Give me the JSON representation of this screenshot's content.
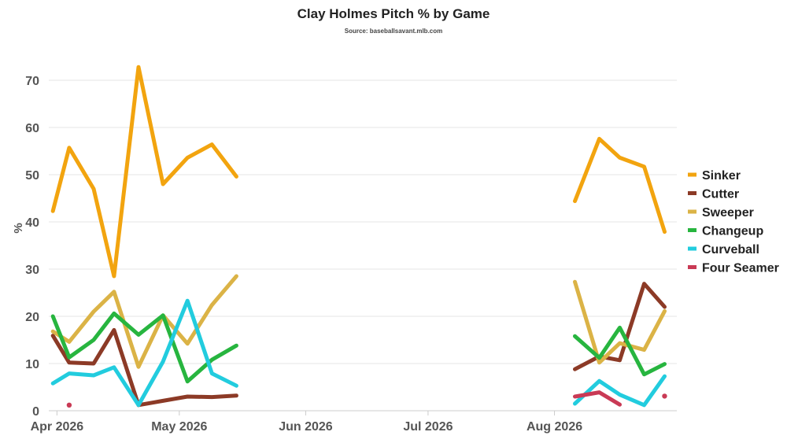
{
  "chart_data": {
    "type": "line",
    "title": "Clay Holmes Pitch % by Game",
    "subtitle": "Source: baseballsavant.mlb.com",
    "ylabel": "%",
    "xlabel": "",
    "xlim": [
      "2026-03-30",
      "2026-08-31"
    ],
    "ylim": [
      0,
      75
    ],
    "yticks": [
      0,
      10,
      20,
      30,
      40,
      50,
      60,
      70
    ],
    "xticks": [
      {
        "date": "2026-04-01",
        "label": "Apr 2026"
      },
      {
        "date": "2026-05-01",
        "label": "May 2026"
      },
      {
        "date": "2026-06-01",
        "label": "Jun 2026"
      },
      {
        "date": "2026-07-01",
        "label": "Jul 2026"
      },
      {
        "date": "2026-08-01",
        "label": "Aug 2026"
      }
    ],
    "grid": true,
    "legend_position": "right",
    "series": [
      {
        "name": "Sinker",
        "color": "#F2A40F",
        "segments": [
          [
            [
              "2026-03-31",
              42.3
            ],
            [
              "2026-04-04",
              55.7
            ],
            [
              "2026-04-10",
              47.0
            ],
            [
              "2026-04-15",
              28.5
            ],
            [
              "2026-04-21",
              72.8
            ],
            [
              "2026-04-27",
              48.0
            ],
            [
              "2026-05-03",
              53.6
            ],
            [
              "2026-05-09",
              56.4
            ],
            [
              "2026-05-15",
              49.6
            ]
          ],
          [
            [
              "2026-08-06",
              44.4
            ],
            [
              "2026-08-12",
              57.6
            ],
            [
              "2026-08-17",
              53.6
            ],
            [
              "2026-08-23",
              51.7
            ],
            [
              "2026-08-28",
              37.9
            ]
          ]
        ]
      },
      {
        "name": "Cutter",
        "color": "#8C3A26",
        "segments": [
          [
            [
              "2026-03-31",
              15.9
            ],
            [
              "2026-04-04",
              10.2
            ],
            [
              "2026-04-10",
              10.0
            ],
            [
              "2026-04-15",
              17.1
            ],
            [
              "2026-04-21",
              1.2
            ],
            [
              "2026-04-27",
              2.1
            ],
            [
              "2026-05-03",
              3.0
            ],
            [
              "2026-05-09",
              2.9
            ],
            [
              "2026-05-15",
              3.2
            ]
          ],
          [
            [
              "2026-08-06",
              8.8
            ],
            [
              "2026-08-12",
              11.5
            ],
            [
              "2026-08-17",
              10.7
            ],
            [
              "2026-08-23",
              26.9
            ],
            [
              "2026-08-28",
              22.0
            ]
          ]
        ]
      },
      {
        "name": "Sweeper",
        "color": "#DBB346",
        "segments": [
          [
            [
              "2026-03-31",
              16.8
            ],
            [
              "2026-04-04",
              14.6
            ],
            [
              "2026-04-10",
              21.0
            ],
            [
              "2026-04-15",
              25.2
            ],
            [
              "2026-04-21",
              9.3
            ],
            [
              "2026-04-27",
              20.2
            ],
            [
              "2026-05-03",
              14.2
            ],
            [
              "2026-05-09",
              22.4
            ],
            [
              "2026-05-15",
              28.5
            ]
          ],
          [
            [
              "2026-08-06",
              27.3
            ],
            [
              "2026-08-12",
              10.2
            ],
            [
              "2026-08-17",
              14.3
            ],
            [
              "2026-08-23",
              12.9
            ],
            [
              "2026-08-28",
              21.1
            ]
          ]
        ]
      },
      {
        "name": "Changeup",
        "color": "#27B53F",
        "segments": [
          [
            [
              "2026-03-31",
              20.0
            ],
            [
              "2026-04-04",
              11.3
            ],
            [
              "2026-04-10",
              15.0
            ],
            [
              "2026-04-15",
              20.6
            ],
            [
              "2026-04-21",
              16.1
            ],
            [
              "2026-04-27",
              20.2
            ],
            [
              "2026-05-03",
              6.2
            ],
            [
              "2026-05-09",
              10.8
            ],
            [
              "2026-05-15",
              13.8
            ]
          ],
          [
            [
              "2026-08-06",
              15.8
            ],
            [
              "2026-08-12",
              11.2
            ],
            [
              "2026-08-17",
              17.6
            ],
            [
              "2026-08-23",
              7.7
            ],
            [
              "2026-08-28",
              9.9
            ]
          ]
        ]
      },
      {
        "name": "Curveball",
        "color": "#22CCDE",
        "segments": [
          [
            [
              "2026-03-31",
              5.8
            ],
            [
              "2026-04-04",
              7.9
            ],
            [
              "2026-04-10",
              7.5
            ],
            [
              "2026-04-15",
              9.2
            ],
            [
              "2026-04-21",
              1.2
            ],
            [
              "2026-04-27",
              10.4
            ],
            [
              "2026-05-03",
              23.3
            ],
            [
              "2026-05-09",
              7.9
            ],
            [
              "2026-05-15",
              5.3
            ]
          ],
          [
            [
              "2026-08-06",
              1.5
            ],
            [
              "2026-08-12",
              6.3
            ],
            [
              "2026-08-17",
              3.4
            ],
            [
              "2026-08-23",
              1.2
            ],
            [
              "2026-08-28",
              7.3
            ]
          ]
        ]
      },
      {
        "name": "Four Seamer",
        "color": "#C93A55",
        "segments": [
          [
            [
              "2026-04-04",
              1.2
            ]
          ],
          [
            [
              "2026-08-06",
              3.0
            ],
            [
              "2026-08-12",
              3.9
            ],
            [
              "2026-08-17",
              1.3
            ]
          ],
          [
            [
              "2026-08-28",
              3.1
            ]
          ]
        ]
      }
    ]
  }
}
